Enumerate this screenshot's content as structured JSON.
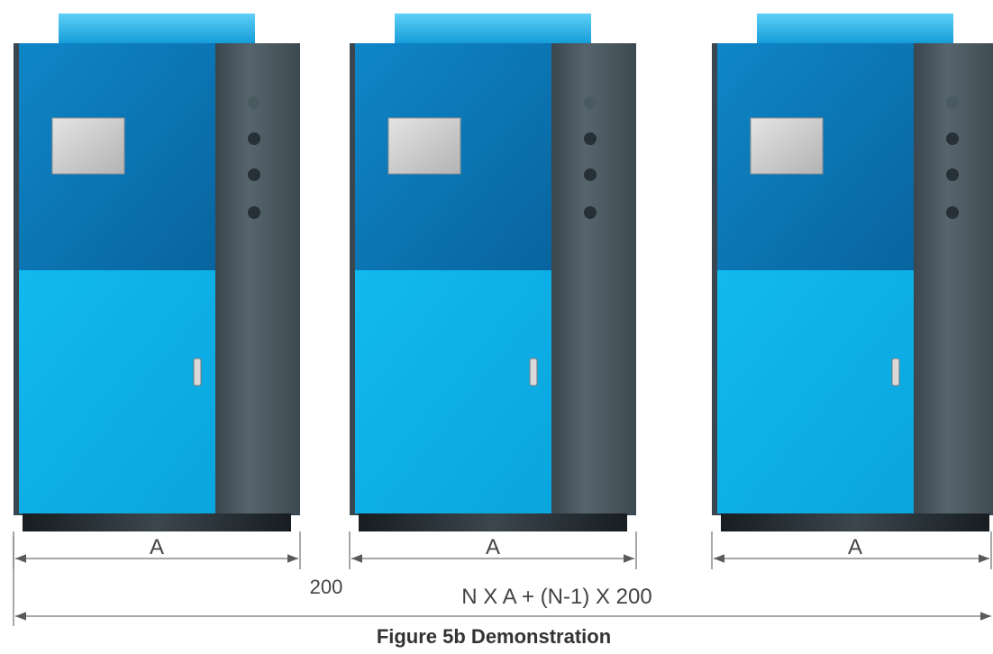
{
  "units": [
    {
      "dimension_label": "A"
    },
    {
      "dimension_label": "A"
    },
    {
      "dimension_label": "A"
    }
  ],
  "gap_label": "200",
  "total_label": "N X A + (N-1) X 200",
  "caption": "Figure 5b Demonstration",
  "colors": {
    "top_vent": "#1fa4dd",
    "upper_panel": "#0a74b4",
    "lower_panel": "#0bb3ea",
    "side_panel": "#45525b",
    "base": "#222a30",
    "screen": "#c9c9c9",
    "indicator": "#2f3a40",
    "dimension_line": "#8a8a8a"
  }
}
